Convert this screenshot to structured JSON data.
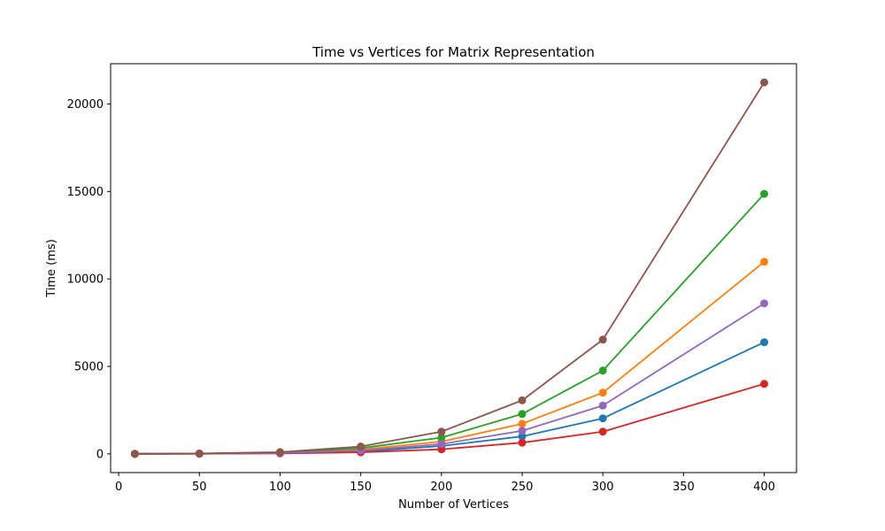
{
  "chart_data": {
    "type": "line",
    "title": "Time vs Vertices for Matrix Representation",
    "xlabel": "Number of Vertices",
    "ylabel": "Time (ms)",
    "x": [
      10,
      50,
      100,
      150,
      200,
      250,
      300,
      400
    ],
    "xlim": [
      -5,
      420
    ],
    "ylim": [
      -1070,
      22300
    ],
    "xticks": [
      0,
      50,
      100,
      150,
      200,
      250,
      300,
      350,
      400
    ],
    "yticks": [
      0,
      5000,
      10000,
      15000,
      20000
    ],
    "grid": false,
    "legend": "none",
    "marker": "circle",
    "series": [
      {
        "color": "#1f77b4",
        "values": [
          1,
          8,
          40,
          130,
          450,
          1000,
          2030,
          6380
        ]
      },
      {
        "color": "#ff7f0e",
        "values": [
          1,
          12,
          60,
          250,
          700,
          1720,
          3500,
          10980
        ]
      },
      {
        "color": "#2ca02c",
        "values": [
          1,
          16,
          80,
          330,
          930,
          2280,
          4760,
          14860
        ]
      },
      {
        "color": "#d62728",
        "values": [
          1,
          6,
          25,
          90,
          260,
          640,
          1270,
          4000
        ]
      },
      {
        "color": "#9467bd",
        "values": [
          1,
          10,
          50,
          190,
          560,
          1320,
          2760,
          8600
        ]
      },
      {
        "color": "#8c564b",
        "values": [
          1,
          20,
          100,
          420,
          1270,
          3060,
          6530,
          21230
        ]
      }
    ]
  }
}
